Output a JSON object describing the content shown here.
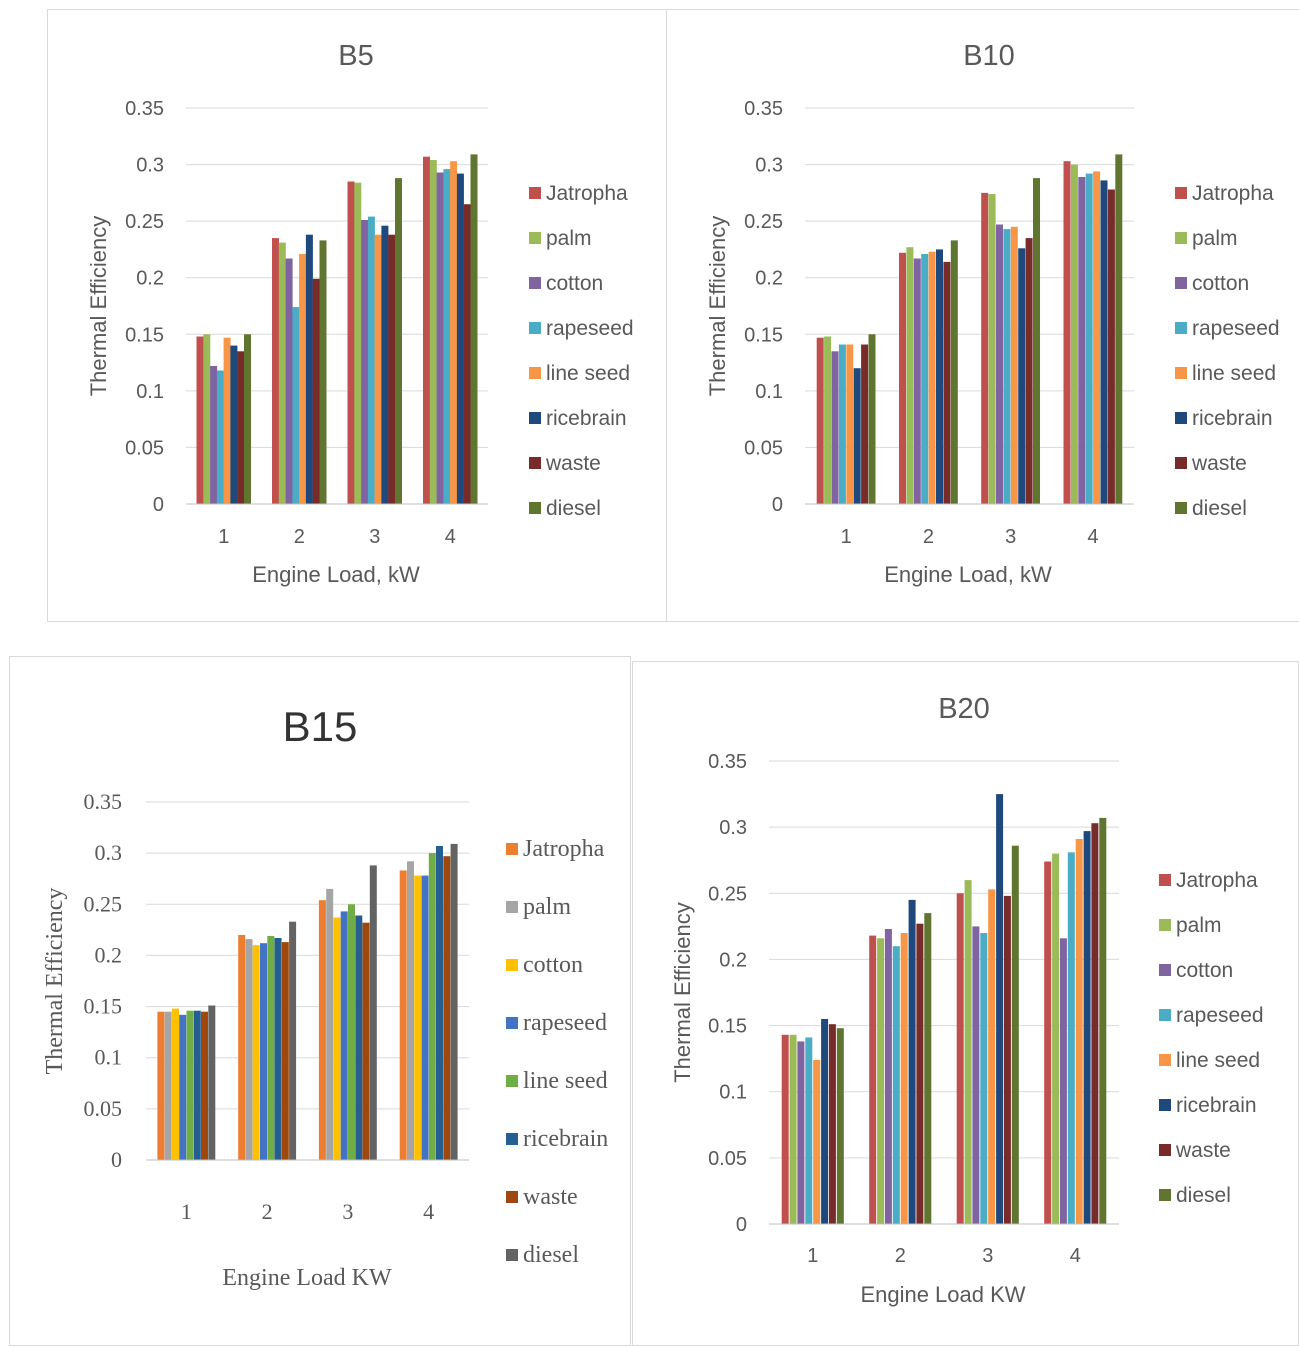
{
  "chart_data": [
    {
      "type": "bar",
      "title": "B5",
      "xlabel": "Engine Load, kW",
      "ylabel": "Thermal Efficiency",
      "ylim": [
        0,
        0.35
      ],
      "yticks": [
        "0",
        "0.05",
        "0.1",
        "0.15",
        "0.2",
        "0.25",
        "0.3",
        "0.35"
      ],
      "categories": [
        "1",
        "2",
        "3",
        "4"
      ],
      "grid": true,
      "legend": "right",
      "series": [
        {
          "name": "Jatropha",
          "color": "#c0504d",
          "values": [
            0.148,
            0.235,
            0.285,
            0.307
          ]
        },
        {
          "name": "palm",
          "color": "#9bbb59",
          "values": [
            0.15,
            0.231,
            0.284,
            0.304
          ]
        },
        {
          "name": "cotton",
          "color": "#8064a2",
          "values": [
            0.122,
            0.217,
            0.251,
            0.293
          ]
        },
        {
          "name": "rapeseed",
          "color": "#4bacc6",
          "values": [
            0.118,
            0.174,
            0.254,
            0.296
          ]
        },
        {
          "name": "line seed",
          "color": "#f79646",
          "values": [
            0.147,
            0.221,
            0.238,
            0.303
          ]
        },
        {
          "name": "ricebrain",
          "color": "#1f497d",
          "values": [
            0.14,
            0.238,
            0.246,
            0.292
          ]
        },
        {
          "name": "waste",
          "color": "#772c2a",
          "values": [
            0.135,
            0.199,
            0.238,
            0.265
          ]
        },
        {
          "name": "diesel",
          "color": "#5f7530",
          "values": [
            0.15,
            0.233,
            0.288,
            0.309
          ]
        }
      ]
    },
    {
      "type": "bar",
      "title": "B10",
      "xlabel": "Engine Load, kW",
      "ylabel": "Thermal Efficiency",
      "ylim": [
        0,
        0.35
      ],
      "yticks": [
        "0",
        "0.05",
        "0.1",
        "0.15",
        "0.2",
        "0.25",
        "0.3",
        "0.35"
      ],
      "categories": [
        "1",
        "2",
        "3",
        "4"
      ],
      "grid": true,
      "legend": "right",
      "series": [
        {
          "name": "Jatropha",
          "color": "#c0504d",
          "values": [
            0.147,
            0.222,
            0.275,
            0.303
          ]
        },
        {
          "name": "palm",
          "color": "#9bbb59",
          "values": [
            0.148,
            0.227,
            0.274,
            0.3
          ]
        },
        {
          "name": "cotton",
          "color": "#8064a2",
          "values": [
            0.135,
            0.217,
            0.247,
            0.289
          ]
        },
        {
          "name": "rapeseed",
          "color": "#4bacc6",
          "values": [
            0.141,
            0.221,
            0.243,
            0.292
          ]
        },
        {
          "name": "line seed",
          "color": "#f79646",
          "values": [
            0.141,
            0.223,
            0.245,
            0.294
          ]
        },
        {
          "name": "ricebrain",
          "color": "#1f497d",
          "values": [
            0.12,
            0.225,
            0.226,
            0.286
          ]
        },
        {
          "name": "waste",
          "color": "#772c2a",
          "values": [
            0.141,
            0.214,
            0.235,
            0.278
          ]
        },
        {
          "name": "diesel",
          "color": "#5f7530",
          "values": [
            0.15,
            0.233,
            0.288,
            0.309
          ]
        }
      ]
    },
    {
      "type": "bar",
      "title": "B15",
      "xlabel": "Engine Load KW",
      "ylabel": "Thermal Efficiency",
      "ylim": [
        0,
        0.35
      ],
      "yticks": [
        "0",
        "0.05",
        "0.1",
        "0.15",
        "0.2",
        "0.25",
        "0.3",
        "0.35"
      ],
      "categories": [
        "1",
        "2",
        "3",
        "4"
      ],
      "grid": true,
      "legend": "right",
      "series": [
        {
          "name": "Jatropha",
          "color": "#ed7d31",
          "values": [
            0.145,
            0.22,
            0.254,
            0.283
          ]
        },
        {
          "name": "palm",
          "color": "#a5a5a5",
          "values": [
            0.145,
            0.216,
            0.265,
            0.292
          ]
        },
        {
          "name": "cotton",
          "color": "#ffc000",
          "values": [
            0.148,
            0.21,
            0.237,
            0.278
          ]
        },
        {
          "name": "rapeseed",
          "color": "#4472c4",
          "values": [
            0.142,
            0.212,
            0.243,
            0.278
          ]
        },
        {
          "name": "line seed",
          "color": "#70ad47",
          "values": [
            0.146,
            0.219,
            0.25,
            0.3
          ]
        },
        {
          "name": "ricebrain",
          "color": "#255e91",
          "values": [
            0.146,
            0.217,
            0.239,
            0.307
          ]
        },
        {
          "name": "waste",
          "color": "#9e480e",
          "values": [
            0.145,
            0.213,
            0.232,
            0.297
          ]
        },
        {
          "name": "diesel",
          "color": "#636363",
          "values": [
            0.151,
            0.233,
            0.288,
            0.309
          ]
        }
      ]
    },
    {
      "type": "bar",
      "title": "B20",
      "xlabel": "Engine Load KW",
      "ylabel": "Thermal Efficiency",
      "ylim": [
        0,
        0.35
      ],
      "yticks": [
        "0",
        "0.05",
        "0.1",
        "0.15",
        "0.2",
        "0.25",
        "0.3",
        "0.35"
      ],
      "categories": [
        "1",
        "2",
        "3",
        "4"
      ],
      "grid": true,
      "legend": "right",
      "series": [
        {
          "name": "Jatropha",
          "color": "#c0504d",
          "values": [
            0.143,
            0.218,
            0.25,
            0.274
          ]
        },
        {
          "name": "palm",
          "color": "#9bbb59",
          "values": [
            0.143,
            0.216,
            0.26,
            0.28
          ]
        },
        {
          "name": "cotton",
          "color": "#8064a2",
          "values": [
            0.138,
            0.223,
            0.225,
            0.216
          ]
        },
        {
          "name": "rapeseed",
          "color": "#4bacc6",
          "values": [
            0.141,
            0.21,
            0.22,
            0.281
          ]
        },
        {
          "name": "line seed",
          "color": "#f79646",
          "values": [
            0.124,
            0.22,
            0.253,
            0.291
          ]
        },
        {
          "name": "ricebrain",
          "color": "#1f497d",
          "values": [
            0.155,
            0.245,
            0.325,
            0.297
          ]
        },
        {
          "name": "waste",
          "color": "#772c2a",
          "values": [
            0.151,
            0.227,
            0.248,
            0.303
          ]
        },
        {
          "name": "diesel",
          "color": "#5f7530",
          "values": [
            0.148,
            0.235,
            0.286,
            0.307
          ]
        }
      ]
    }
  ]
}
